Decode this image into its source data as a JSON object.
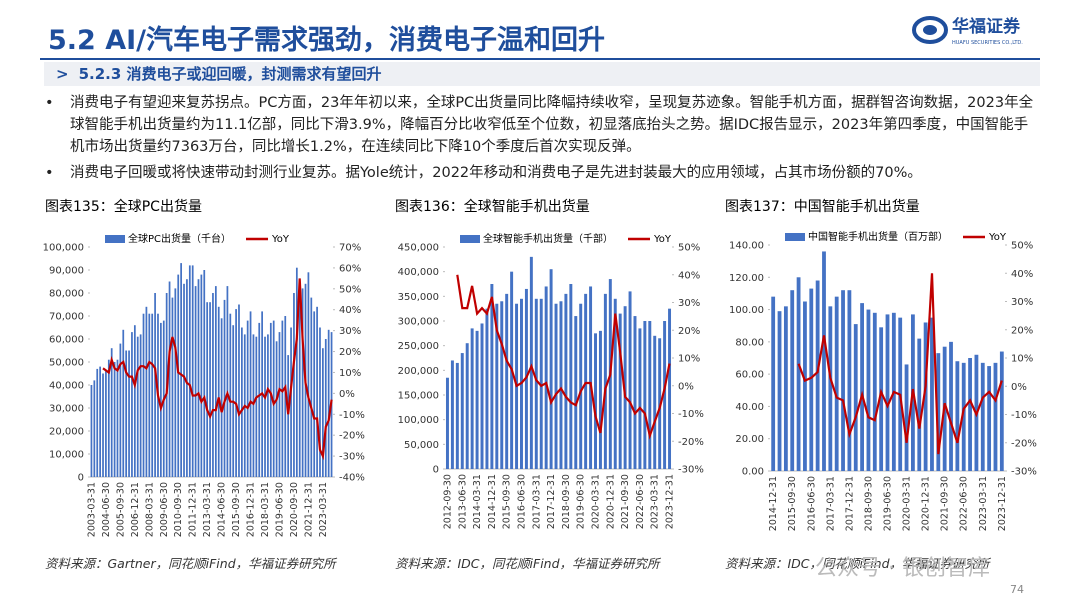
{
  "header": {
    "title": "5.2 AI/汽车电子需求强劲，消费电子温和回升",
    "logo": "华福证券",
    "logo_en": "HUAFU SECURITIES CO.,LTD."
  },
  "subtitle": "5.2.3 消费电子或迎回暖，封测需求有望回升",
  "bullets": [
    "消费电子有望迎来复苏拐点。PC方面，23年年初以来，全球PC出货量同比降幅持续收窄，呈现复苏迹象。智能手机方面，据群智咨询数据，2023年全球智能手机出货量约为11.1亿部，同比下滑3.9%，降幅百分比收窄低至个位数，初显落底抬头之势。据IDC报告显示，2023年第四季度，中国智能手机市场出货量约7363万台，同比增长1.2%，在连续同比下降10个季度后首次实现反弹。",
    "消费电子回暖或将快速带动封测行业复苏。据Yole统计，2022年移动和消费电子是先进封装最大的应用领域，占其市场份额的70%。"
  ],
  "watermark": "公众号 · 银创智库",
  "page_number": "74",
  "chart_data": [
    {
      "type": "bar-line",
      "title": "图表135：全球PC出货量",
      "source": "资料来源：Gartner，同花顺iFind，华福证券研究所",
      "categories": [
        "2003-03-31",
        null,
        null,
        null,
        null,
        "2004-06-30",
        null,
        null,
        null,
        null,
        "2005-09-30",
        null,
        null,
        null,
        null,
        "2006-12-31",
        null,
        null,
        null,
        null,
        "2008-03-31",
        null,
        null,
        null,
        null,
        "2009-06-30",
        null,
        null,
        null,
        null,
        "2010-09-30",
        null,
        null,
        null,
        null,
        "2011-12-31",
        null,
        null,
        null,
        null,
        "2013-03-31",
        null,
        null,
        null,
        null,
        "2014-06-30",
        null,
        null,
        null,
        null,
        "2015-09-30",
        null,
        null,
        null,
        null,
        "2016-12-31",
        null,
        null,
        null,
        null,
        "2018-03-31",
        null,
        null,
        null,
        null,
        "2019-06-30",
        null,
        null,
        null,
        null,
        "2020-09-30",
        null,
        null,
        null,
        null,
        "2021-12-31",
        null,
        null,
        null,
        null,
        "2023-03-31",
        null,
        null,
        null
      ],
      "series": [
        {
          "name": "全球PC出货量（千台）",
          "color": "#4472c4",
          "type": "bar",
          "values": [
            40000,
            42000,
            47000,
            48000,
            45000,
            46000,
            51000,
            56000,
            50000,
            51000,
            58000,
            64000,
            55000,
            55000,
            63000,
            66000,
            61000,
            62000,
            71000,
            74000,
            71000,
            71000,
            80000,
            71000,
            67000,
            68000,
            80000,
            85000,
            78000,
            82000,
            88000,
            93000,
            84000,
            86000,
            92000,
            92000,
            83000,
            86000,
            88000,
            90000,
            76000,
            76000,
            80000,
            83000,
            74000,
            69000,
            77000,
            83000,
            71000,
            66000,
            73000,
            75000,
            65000,
            62000,
            68000,
            72000,
            62000,
            61000,
            67000,
            72000,
            61000,
            62000,
            67000,
            68000,
            59000,
            63000,
            68000,
            70000,
            53000,
            65000,
            80000,
            91000,
            84000,
            82000,
            84000,
            89000,
            78000,
            72000,
            74000,
            65000,
            56000,
            60000,
            64000,
            63000
          ]
        },
        {
          "name": "YoY",
          "color": "#c00000",
          "type": "line",
          "axis": "y2",
          "values": [
            null,
            null,
            null,
            null,
            12,
            11,
            10,
            16,
            12,
            11,
            14,
            15,
            10,
            8,
            8,
            4,
            11,
            13,
            13,
            12,
            15,
            14,
            12,
            -1,
            -7,
            -3,
            0,
            20,
            27,
            22,
            10,
            9,
            8,
            5,
            4,
            -1,
            -1,
            0,
            -4,
            -2,
            -8,
            -11,
            -8,
            -8,
            -2,
            -9,
            -4,
            0,
            -4,
            -4,
            -5,
            -10,
            -8,
            -6,
            -7,
            -4,
            -5,
            -2,
            -1,
            0,
            -2,
            2,
            0,
            -5,
            -3,
            2,
            1,
            3,
            -10,
            3,
            15,
            26,
            55,
            26,
            5,
            -2,
            -7,
            -12,
            -12,
            -27,
            -30,
            -16,
            -13,
            -3
          ]
        }
      ],
      "ylim": [
        0,
        100000
      ],
      "yticks": [
        0,
        {
          "value": 10000,
          "label": "10,000"
        },
        {
          "value": 20000,
          "label": "20,000"
        },
        {
          "value": 30000,
          "label": "30,000"
        },
        {
          "value": 40000,
          "label": "40,000"
        },
        {
          "value": 50000,
          "label": "50,000"
        },
        {
          "value": 60000,
          "label": "60,000"
        },
        {
          "value": 70000,
          "label": "70,000"
        },
        {
          "value": 80000,
          "label": "80,000"
        },
        {
          "value": 90000,
          "label": "90,000"
        },
        {
          "value": 100000,
          "label": "100,000"
        }
      ],
      "y2lim": [
        -40,
        70
      ],
      "y2ticks": [
        {
          "value": -40,
          "label": "-40%"
        },
        {
          "value": -30,
          "label": "-30%"
        },
        {
          "value": -20,
          "label": "-20%"
        },
        {
          "value": -10,
          "label": "-10%"
        },
        {
          "value": 0,
          "label": "0%"
        },
        {
          "value": 10,
          "label": "10%"
        },
        {
          "value": 20,
          "label": "20%"
        },
        {
          "value": 30,
          "label": "30%"
        },
        {
          "value": 40,
          "label": "40%"
        },
        {
          "value": 50,
          "label": "50%"
        },
        {
          "value": 60,
          "label": "60%"
        },
        {
          "value": 70,
          "label": "70%"
        }
      ]
    },
    {
      "type": "bar-line",
      "title": "图表136：全球智能手机出货量",
      "source": "资料来源：IDC，同花顺iFind，华福证券研究所",
      "categories": [
        "2012-09-30",
        null,
        null,
        "2013-06-30",
        null,
        null,
        "2014-03-31",
        null,
        null,
        "2014-12-31",
        null,
        null,
        "2015-09-30",
        null,
        null,
        "2016-06-30",
        null,
        null,
        "2017-03-31",
        null,
        null,
        "2017-12-31",
        null,
        null,
        "2018-09-30",
        null,
        null,
        "2019-06-30",
        null,
        null,
        "2020-03-31",
        null,
        null,
        "2020-12-31",
        null,
        null,
        "2021-09-30",
        null,
        null,
        "2022-06-30",
        null,
        null,
        "2023-03-31",
        null,
        null,
        "2023-12-31"
      ],
      "series": [
        {
          "name": "全球智能手机出货量（千部）",
          "color": "#4472c4",
          "type": "bar",
          "values": [
            185000,
            220000,
            215000,
            235000,
            255000,
            285000,
            280000,
            295000,
            325000,
            375000,
            335000,
            340000,
            355000,
            400000,
            335000,
            345000,
            365000,
            430000,
            345000,
            345000,
            370000,
            405000,
            335000,
            340000,
            355000,
            375000,
            310000,
            335000,
            355000,
            370000,
            275000,
            280000,
            355000,
            385000,
            345000,
            315000,
            330000,
            360000,
            310000,
            285000,
            300000,
            300000,
            270000,
            265000,
            300000,
            325000
          ]
        },
        {
          "name": "YoY",
          "color": "#c00000",
          "type": "line",
          "axis": "y2",
          "values": [
            null,
            null,
            40,
            28,
            28,
            36,
            26,
            28,
            26,
            32,
            20,
            15,
            9,
            6,
            0,
            1,
            3,
            7,
            2,
            0,
            1,
            -6,
            -3,
            -1,
            -4,
            -6,
            -7,
            -2,
            1,
            1,
            -11,
            -17,
            -1,
            4,
            26,
            12,
            -4,
            -6,
            -10,
            -8,
            -10,
            -18,
            -13,
            -8,
            -1,
            8
          ]
        }
      ],
      "ylim": [
        0,
        450000
      ],
      "yticks": [
        0,
        {
          "value": 50000,
          "label": "50,000"
        },
        {
          "value": 100000,
          "label": "100,000"
        },
        {
          "value": 150000,
          "label": "150,000"
        },
        {
          "value": 200000,
          "label": "200,000"
        },
        {
          "value": 250000,
          "label": "250,000"
        },
        {
          "value": 300000,
          "label": "300,000"
        },
        {
          "value": 350000,
          "label": "350,000"
        },
        {
          "value": 400000,
          "label": "400,000"
        },
        {
          "value": 450000,
          "label": "450,000"
        }
      ],
      "y2lim": [
        -30,
        50
      ],
      "y2ticks": [
        {
          "value": -30,
          "label": "-30%"
        },
        {
          "value": -20,
          "label": "-20%"
        },
        {
          "value": -10,
          "label": "-10%"
        },
        {
          "value": 0,
          "label": "0%"
        },
        {
          "value": 10,
          "label": "10%"
        },
        {
          "value": 20,
          "label": "20%"
        },
        {
          "value": 30,
          "label": "30%"
        },
        {
          "value": 40,
          "label": "40%"
        },
        {
          "value": 50,
          "label": "50%"
        }
      ]
    },
    {
      "type": "bar-line",
      "title": "图表137：中国智能手机出货量",
      "source": "资料来源：IDC，同花顺iFind，华福证券研究所",
      "categories": [
        "2014-12-31",
        null,
        null,
        "2015-09-30",
        null,
        null,
        "2016-06-30",
        null,
        null,
        "2017-03-31",
        null,
        null,
        "2017-12-31",
        null,
        null,
        "2018-09-30",
        null,
        null,
        "2019-06-30",
        null,
        null,
        "2020-03-31",
        null,
        null,
        "2020-12-31",
        null,
        null,
        "2021-09-30",
        null,
        null,
        "2022-06-30",
        null,
        null,
        "2023-03-31",
        null,
        null,
        "2023-12-31"
      ],
      "series": [
        {
          "name": "中国智能手机出货量（百万部）",
          "color": "#4472c4",
          "type": "bar",
          "values": [
            108,
            99,
            102,
            112,
            120,
            105,
            113,
            118,
            136,
            102,
            108,
            112,
            112,
            91,
            104,
            100,
            98,
            89,
            97,
            98,
            95,
            66,
            97,
            82,
            92,
            95,
            73,
            77,
            80,
            68,
            67,
            70,
            72,
            67,
            65,
            67,
            74
          ]
        },
        {
          "name": "YoY",
          "color": "#c00000",
          "type": "line",
          "axis": "y2",
          "values": [
            null,
            null,
            null,
            null,
            8,
            2,
            3,
            5,
            18,
            3,
            -4,
            -5,
            -17,
            -11,
            -3,
            -11,
            -12,
            -2,
            -7,
            -2,
            -3,
            -20,
            -1,
            -15,
            0,
            40,
            -24,
            -6,
            -13,
            -20,
            -8,
            -5,
            -10,
            -4,
            -2,
            -5,
            2
          ]
        }
      ],
      "ylim": [
        0,
        140
      ],
      "yticks": [
        {
          "value": 0,
          "label": "0.00"
        },
        {
          "value": 20,
          "label": "20.00"
        },
        {
          "value": 40,
          "label": "40.00"
        },
        {
          "value": 60,
          "label": "60.00"
        },
        {
          "value": 80,
          "label": "80.00"
        },
        {
          "value": 100,
          "label": "100.00"
        },
        {
          "value": 120,
          "label": "120.00"
        },
        {
          "value": 140,
          "label": "140.00"
        }
      ],
      "y2lim": [
        -30,
        50
      ],
      "y2ticks": [
        {
          "value": -30,
          "label": "-30%"
        },
        {
          "value": -20,
          "label": "-20%"
        },
        {
          "value": -10,
          "label": "-10%"
        },
        {
          "value": 0,
          "label": "0%"
        },
        {
          "value": 10,
          "label": "10%"
        },
        {
          "value": 20,
          "label": "20%"
        },
        {
          "value": 30,
          "label": "30%"
        },
        {
          "value": 40,
          "label": "40%"
        },
        {
          "value": 50,
          "label": "50%"
        }
      ]
    }
  ]
}
